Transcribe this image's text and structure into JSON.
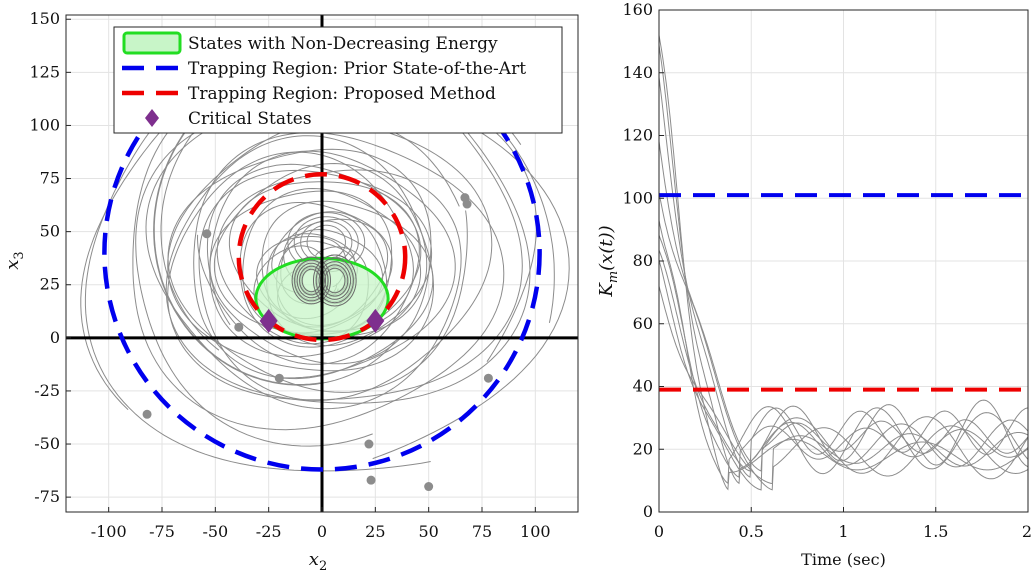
{
  "chart_data": [
    {
      "type": "line",
      "title": "",
      "xlabel": "x",
      "xlabel_sub": "2",
      "ylabel": "x",
      "ylabel_sub": "3",
      "xlim": [
        -120,
        120
      ],
      "ylim": [
        -82,
        152
      ],
      "xticks": [
        -100,
        -75,
        -50,
        -25,
        0,
        25,
        50,
        75,
        100
      ],
      "yticks": [
        -75,
        -50,
        -25,
        0,
        25,
        50,
        75,
        100,
        125,
        150
      ],
      "grid": true,
      "legend_position": "top",
      "legend": [
        {
          "label": "States with Non-Decreasing Energy",
          "kind": "ellipse",
          "color": "#22dd22",
          "fill": "#c8f5c8"
        },
        {
          "label": "Trapping Region: Prior State-of-the-Art",
          "kind": "dashed",
          "color": "#0000ee"
        },
        {
          "label": "Trapping Region: Proposed Method",
          "kind": "dashed",
          "color": "#ee0000"
        },
        {
          "label": "Critical States",
          "kind": "diamond",
          "color": "#7e2f8e"
        }
      ],
      "energy_ellipse": {
        "center": [
          0,
          18.5
        ],
        "semi_axes": [
          31,
          19
        ]
      },
      "prior_region": {
        "center": [
          0,
          40
        ],
        "radius": 102
      },
      "proposed_region": {
        "center": [
          0,
          38
        ],
        "radius": 39
      },
      "critical_states": [
        [
          -25,
          8
        ],
        [
          25,
          8
        ]
      ],
      "initial_states": [
        [
          -54,
          49
        ],
        [
          -39,
          5
        ],
        [
          -20,
          -19
        ],
        [
          -82,
          -36
        ],
        [
          67,
          66
        ],
        [
          68,
          63
        ],
        [
          78,
          -19
        ],
        [
          22,
          -50
        ],
        [
          23,
          -67
        ],
        [
          50,
          -70
        ]
      ],
      "trajectory_color": "#8c8c8c"
    },
    {
      "type": "line",
      "title": "",
      "xlabel": "Time (sec)",
      "ylabel": "K_m(x(t))",
      "ylabel_display": "Km(x(t))",
      "ylabel_parts": {
        "base": "K",
        "sub": "m",
        "args": "(x(t))"
      },
      "xlim": [
        0,
        2
      ],
      "ylim": [
        0,
        160
      ],
      "xticks": [
        0,
        0.5,
        1,
        1.5,
        2
      ],
      "xtick_labels": [
        "0",
        "0.5",
        "1",
        "1.5",
        "2"
      ],
      "yticks": [
        0,
        20,
        40,
        60,
        80,
        100,
        120,
        140,
        160
      ],
      "grid": true,
      "threshold_prior": {
        "value": 101,
        "color": "#0000ee"
      },
      "threshold_proposed": {
        "value": 39,
        "color": "#ee0000"
      },
      "initial_values": [
        152,
        140,
        130,
        117,
        108,
        100,
        90,
        80,
        75,
        70
      ],
      "series_color": "#8c8c8c"
    }
  ]
}
